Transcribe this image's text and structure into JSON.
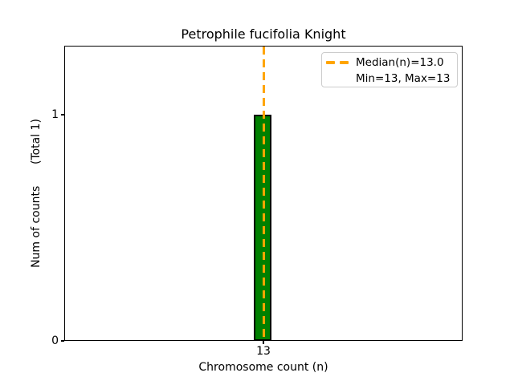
{
  "chart_data": {
    "type": "bar",
    "title": "Petrophile fucifolia Knight",
    "xlabel": "Chromosome count (n)",
    "ylabel": "Num of counts      (Total 1)",
    "categories": [
      13
    ],
    "values": [
      1
    ],
    "total_counts": 1,
    "xticks": [
      "13"
    ],
    "yticks": [
      "0",
      "1"
    ],
    "ylim": [
      0,
      1.3
    ],
    "grid": false,
    "bar_color": "#008000",
    "bar_edge_color": "#000000",
    "background_color": "#ffffff",
    "median_line": {
      "value": 13.0,
      "color": "#FFA500",
      "style": "dashed",
      "orientation": "vertical"
    },
    "legend": {
      "position": "upper-right",
      "entries": [
        {
          "label": "Median(n)=13.0",
          "sample": "orange-dashed-line",
          "color": "#FFA500"
        },
        {
          "label": "Min=13, Max=13",
          "sample": "none"
        }
      ]
    }
  }
}
